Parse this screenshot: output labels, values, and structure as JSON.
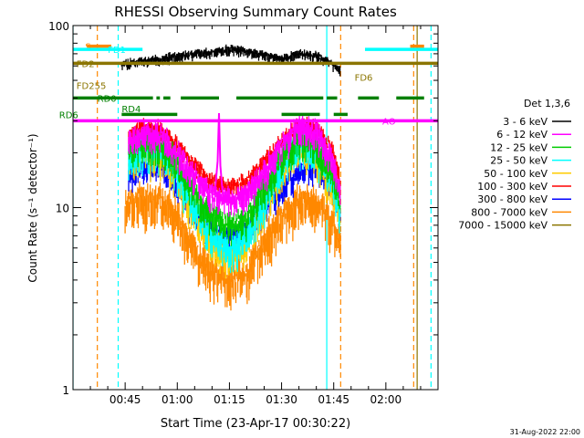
{
  "chart_data": {
    "type": "line",
    "title": "RHESSI Observing Summary Count Rates",
    "xlabel": "Start Time (23-Apr-17 00:30:22)",
    "ylabel": "Count Rate (s⁻¹ detector⁻¹)",
    "yscale": "log",
    "ylim": [
      1,
      100
    ],
    "xlim_minutes": [
      0,
      105
    ],
    "x_ticks": [
      {
        "label": "00:45",
        "minute": 15
      },
      {
        "label": "01:00",
        "minute": 30
      },
      {
        "label": "01:15",
        "minute": 45
      },
      {
        "label": "01:30",
        "minute": 60
      },
      {
        "label": "01:45",
        "minute": 75
      },
      {
        "label": "02:00",
        "minute": 90
      }
    ],
    "y_ticks": [
      {
        "label": "1",
        "value": 1
      },
      {
        "label": "10",
        "value": 10
      },
      {
        "label": "100",
        "value": 100
      }
    ],
    "legend_title": "Det 1,3,6",
    "legend_position": "right",
    "series": [
      {
        "name": "3 - 6 keV",
        "color": "#000000",
        "seed": 11,
        "jitter": 0.02,
        "noise": 0.05,
        "x": [
          14,
          20,
          30,
          40,
          45,
          50,
          55,
          60,
          65,
          70,
          74,
          77
        ],
        "y": [
          62,
          64,
          68,
          72,
          74,
          72,
          69,
          66,
          71,
          68,
          63,
          56
        ]
      },
      {
        "name": "6 - 12 keV",
        "color": "#ff00ff",
        "seed": 23,
        "jitter": 0.06,
        "noise": 0.14,
        "x": [
          16,
          20,
          25,
          30,
          35,
          40,
          45,
          50,
          55,
          60,
          65,
          70,
          75,
          77
        ],
        "y": [
          24,
          26,
          25,
          20,
          15,
          12,
          11,
          12,
          16,
          22,
          28,
          26,
          18,
          12
        ]
      },
      {
        "name": "12 - 25 keV",
        "color": "#00cc00",
        "seed": 37,
        "jitter": 0.07,
        "noise": 0.15,
        "x": [
          16,
          20,
          25,
          30,
          35,
          40,
          45,
          50,
          55,
          60,
          65,
          70,
          75,
          77
        ],
        "y": [
          21,
          23,
          22,
          18,
          12,
          9,
          8,
          9,
          13,
          19,
          25,
          22,
          15,
          10
        ]
      },
      {
        "name": "25 - 50 keV",
        "color": "#00ffff",
        "seed": 41,
        "jitter": 0.08,
        "noise": 0.16,
        "x": [
          16,
          20,
          25,
          30,
          35,
          40,
          45,
          50,
          55,
          60,
          65,
          70,
          75,
          77
        ],
        "y": [
          19,
          21,
          20,
          16,
          10,
          7,
          6,
          7,
          11,
          17,
          23,
          20,
          13,
          9
        ]
      },
      {
        "name": "50 - 100 keV",
        "color": "#ffcc00",
        "seed": 53,
        "jitter": 0.08,
        "noise": 0.16,
        "x": [
          16,
          20,
          25,
          30,
          35,
          40,
          45,
          50,
          55,
          60,
          65,
          70,
          75,
          77
        ],
        "y": [
          18,
          20,
          19,
          15,
          9,
          6.5,
          5.5,
          6.5,
          10,
          16,
          22,
          19,
          12,
          8.5
        ]
      },
      {
        "name": "100 - 300 keV",
        "color": "#ff0000",
        "seed": 61,
        "jitter": 0.05,
        "noise": 0.09,
        "x": [
          16,
          20,
          25,
          30,
          35,
          40,
          45,
          50,
          55,
          60,
          65,
          70,
          75,
          77
        ],
        "y": [
          25,
          28,
          27,
          22,
          17,
          14,
          13,
          14,
          18,
          23,
          28,
          28,
          20,
          14
        ]
      },
      {
        "name": "300 - 800 keV",
        "color": "#0000ff",
        "seed": 73,
        "jitter": 0.07,
        "noise": 0.12,
        "x": [
          16,
          20,
          25,
          30,
          35,
          40,
          45,
          50,
          55,
          60,
          65,
          70,
          75,
          77
        ],
        "y": [
          15,
          17,
          17,
          13,
          9.5,
          7.5,
          7,
          7.5,
          10,
          13,
          16,
          17,
          12,
          9
        ]
      },
      {
        "name": "800 - 7000 keV",
        "color": "#ff8800",
        "seed": 89,
        "jitter": 0.1,
        "noise": 0.2,
        "x": [
          15,
          20,
          25,
          30,
          35,
          40,
          45,
          50,
          55,
          60,
          65,
          70,
          75,
          77
        ],
        "y": [
          10,
          11.5,
          11,
          9,
          6,
          4.5,
          4,
          4.5,
          6.5,
          9,
          11,
          11,
          8,
          6.5
        ]
      },
      {
        "name": "7000 - 15000 keV",
        "color": "#8b7500",
        "seed": 97,
        "jitter": 0,
        "noise": 0,
        "x": [
          0,
          105
        ],
        "y": [
          62,
          62
        ]
      }
    ],
    "flag_lines": [
      {
        "label": "S",
        "color": "#ff8800",
        "y": 77,
        "segments": [
          [
            4,
            11
          ],
          [
            97,
            101
          ]
        ],
        "label_minute": 3.5
      },
      {
        "label": "FD1",
        "color": "#00ffff",
        "y": 74,
        "segments": [
          [
            0,
            20
          ],
          [
            84,
            105
          ]
        ],
        "label_minute": 10
      },
      {
        "label": "FD2",
        "color": "#8b7500",
        "y": 62,
        "segments": [
          [
            0,
            105
          ]
        ],
        "label_minute": 1
      },
      {
        "label": "FD255",
        "color": "#8b7500",
        "y": 47,
        "segments": [],
        "label_minute": 1
      },
      {
        "label": "RD0",
        "color": "#008000",
        "y": 40,
        "segments": [
          [
            0,
            23
          ],
          [
            24,
            25
          ],
          [
            26,
            28
          ],
          [
            31,
            42
          ],
          [
            47,
            72
          ],
          [
            73,
            76
          ],
          [
            82,
            88
          ],
          [
            93,
            101
          ]
        ],
        "label_minute": 7
      },
      {
        "label": "RD4",
        "color": "#008000",
        "y": 35,
        "segments": [],
        "label_minute": 14
      },
      {
        "label": "RD6",
        "color": "#008000",
        "y": 32.5,
        "segments": [
          [
            14,
            30
          ],
          [
            60,
            71
          ],
          [
            75,
            79
          ]
        ],
        "label_minute": -4
      },
      {
        "label": "FD6",
        "color": "#8b7500",
        "y": 52,
        "segments": [],
        "label_minute": 81
      },
      {
        "label": "AO",
        "color": "#ff00ff",
        "y": 30,
        "segments": [
          [
            0,
            105
          ]
        ],
        "label_minute": 89
      }
    ],
    "vertical_lines": [
      {
        "minute": 0,
        "color": "#00ffff",
        "style": "solid"
      },
      {
        "minute": 7,
        "color": "#ff8800",
        "style": "dashed"
      },
      {
        "minute": 13,
        "color": "#00ffff",
        "style": "dashed"
      },
      {
        "minute": 73,
        "color": "#00ffff",
        "style": "solid"
      },
      {
        "minute": 77,
        "color": "#ff8800",
        "style": "dashed"
      },
      {
        "minute": 98,
        "color": "#ff8800",
        "style": "dashed"
      },
      {
        "minute": 99,
        "color": "#8b7500",
        "style": "solid"
      },
      {
        "minute": 103,
        "color": "#00ffff",
        "style": "dashed"
      }
    ],
    "spike": {
      "minute": 42,
      "peak": 33,
      "color": "#ff00ff"
    },
    "timestamp": "31-Aug-2022 22:00"
  }
}
